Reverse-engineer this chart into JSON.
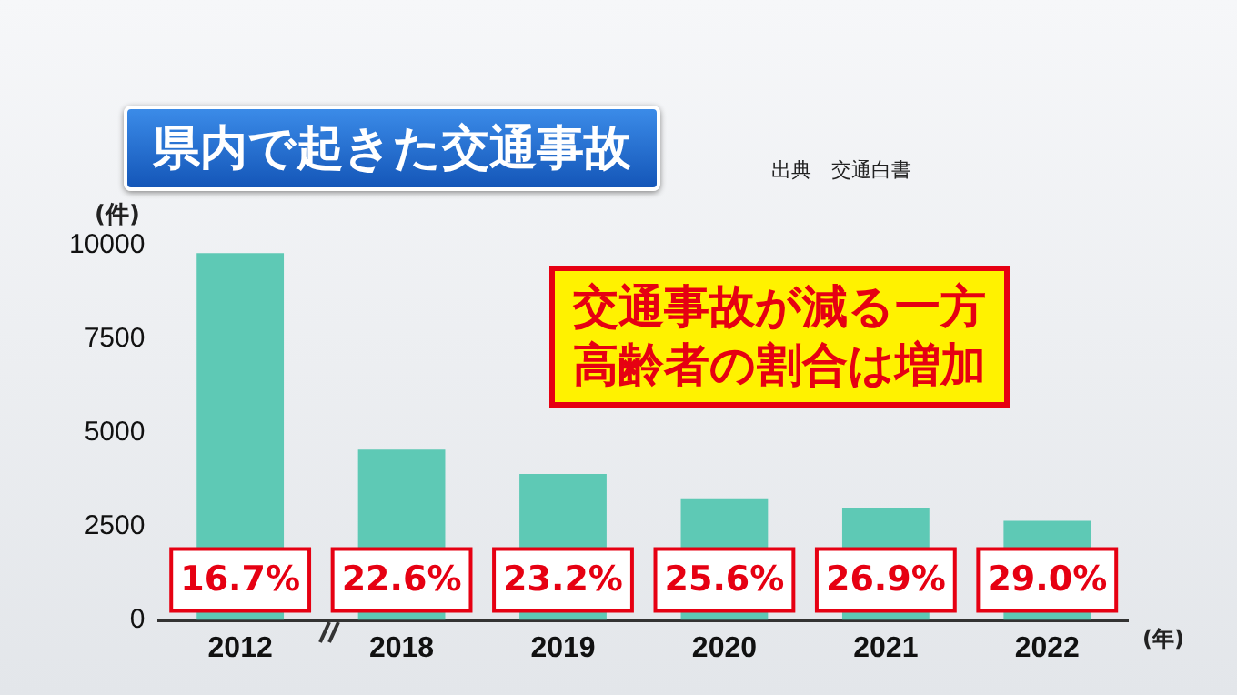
{
  "chart_data": {
    "type": "bar",
    "title": "県内で起きた交通事故",
    "xlabel": "(年)",
    "ylabel": "(件)",
    "categories": [
      "2012",
      "2018",
      "2019",
      "2020",
      "2021",
      "2022"
    ],
    "values": [
      9800,
      4550,
      3900,
      3250,
      3000,
      2650
    ],
    "color": "#5ec9b5",
    "ylim": [
      0,
      10000
    ],
    "yticks": [
      0,
      2500,
      5000,
      7500,
      10000
    ],
    "grid": false,
    "legend": false,
    "annotations": [
      "出典　交通白書",
      "交通事故が減る一方",
      "高齢者の割合は増加",
      "16.7%",
      "22.6%",
      "23.2%",
      "25.6%",
      "26.9%",
      "29.0%"
    ]
  }
}
